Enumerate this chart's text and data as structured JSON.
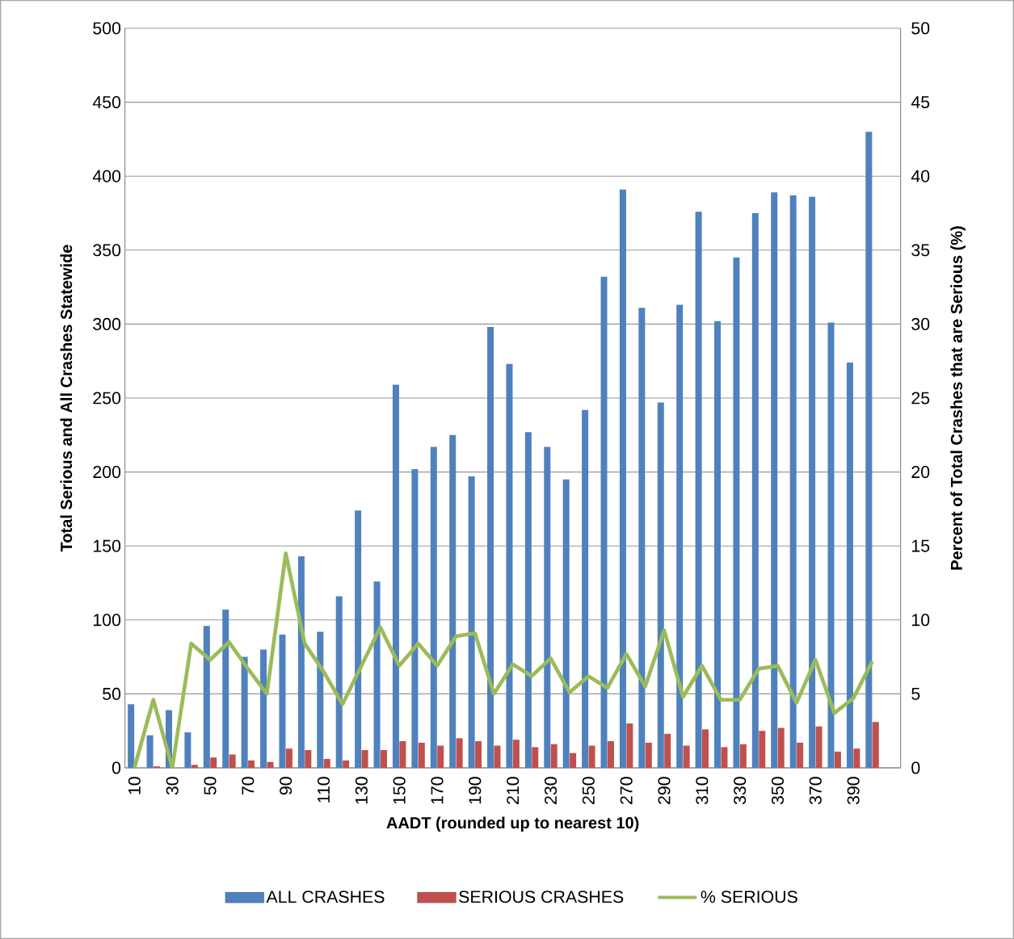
{
  "chart_data": {
    "type": "bar",
    "xlabel": "AADT (rounded up to nearest 10)",
    "ylabel": "Total Serious and All Crashes Statewide",
    "y2label": "Percent of Total Crashes that are Serious (%)",
    "categories": [
      "10",
      null,
      "30",
      null,
      "50",
      null,
      "70",
      null,
      "90",
      null,
      "110",
      null,
      "130",
      null,
      "150",
      null,
      "170",
      null,
      "190",
      null,
      "210",
      null,
      "230",
      null,
      "250",
      null,
      "270",
      null,
      "290",
      null,
      "310",
      null,
      "330",
      null,
      "350",
      null,
      "370",
      null,
      "390",
      null,
      null
    ],
    "series": [
      {
        "name": "ALL CRASHES",
        "color": "#4f81bd",
        "values": [
          43,
          22,
          39,
          24,
          96,
          107,
          75,
          80,
          90,
          143,
          92,
          116,
          174,
          126,
          259,
          202,
          217,
          225,
          197,
          298,
          273,
          227,
          217,
          195,
          242,
          332,
          391,
          311,
          247,
          313,
          376,
          302,
          345,
          375,
          389,
          387,
          386,
          301,
          274,
          430,
          null
        ]
      },
      {
        "name": "SERIOUS CRASHES",
        "color": "#c0504d",
        "values": [
          0,
          1,
          0,
          2,
          7,
          9,
          5,
          4,
          13,
          12,
          6,
          5,
          12,
          12,
          18,
          17,
          15,
          20,
          18,
          15,
          19,
          14,
          16,
          10,
          15,
          18,
          30,
          17,
          23,
          15,
          26,
          14,
          16,
          25,
          27,
          17,
          28,
          11,
          13,
          31,
          null
        ]
      },
      {
        "name": "% SERIOUS",
        "type": "line",
        "axis": "y2",
        "color": "#9bbb59",
        "values": [
          0,
          4.6,
          0,
          8.4,
          7.3,
          8.5,
          6.7,
          5.0,
          14.5,
          8.4,
          6.5,
          4.3,
          6.9,
          9.5,
          6.9,
          8.4,
          6.9,
          8.9,
          9.1,
          5.0,
          7.0,
          6.2,
          7.4,
          5.1,
          6.2,
          5.4,
          7.7,
          5.5,
          9.3,
          4.8,
          6.9,
          4.6,
          4.6,
          6.7,
          6.9,
          4.4,
          7.3,
          3.7,
          4.7,
          7.2,
          null
        ]
      }
    ],
    "ylim": [
      0,
      500
    ],
    "yticks": [
      0,
      50,
      100,
      150,
      200,
      250,
      300,
      350,
      400,
      450,
      500
    ],
    "y2lim": [
      0,
      50
    ],
    "y2ticks": [
      0,
      5,
      10,
      15,
      20,
      25,
      30,
      35,
      40,
      45,
      50
    ],
    "grid": "y",
    "legend": "bottom",
    "marker": "none",
    "line_style": "solid"
  }
}
